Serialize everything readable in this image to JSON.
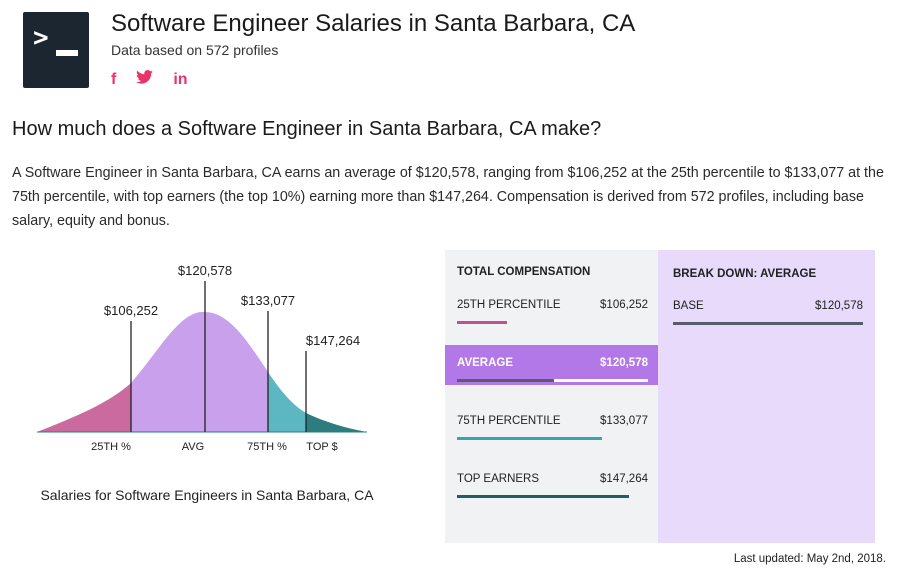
{
  "header": {
    "title": "Software Engineer Salaries in Santa Barbara, CA",
    "subtitle": "Data based on 572 profiles",
    "logo_glyph": ">",
    "social": [
      {
        "name": "facebook-icon",
        "glyph": "f"
      },
      {
        "name": "twitter-icon",
        "glyph": "🐦"
      },
      {
        "name": "linkedin-icon",
        "glyph": "in"
      }
    ],
    "accent_color": "#e8336b"
  },
  "section": {
    "heading": "How much does a Software Engineer in Santa Barbara, CA make?",
    "description": "A Software Engineer in Santa Barbara, CA earns an average of $120,578, ranging from $106,252 at the 25th percentile to $133,077 at the 75th percentile, with top earners (the top 10%) earning more than $147,264. Compensation is derived from 572 profiles, including base salary, equity and bonus."
  },
  "distribution": {
    "caption": "Salaries for Software Engineers in Santa Barbara, CA",
    "labels": {
      "p25": "$106,252",
      "avg": "$120,578",
      "p75": "$133,077",
      "top": "$147,264"
    },
    "axis": {
      "p25": "25TH %",
      "avg": "AVG",
      "p75": "75TH %",
      "top": "TOP $"
    },
    "colors": {
      "p25": "#cb6a9f",
      "avg": "#c9a0ec",
      "p75": "#5db7c2",
      "top": "#2d7d80"
    }
  },
  "total_compensation": {
    "header": "TOTAL COMPENSATION",
    "rows": [
      {
        "label": "25TH PERCENTILE",
        "value": "$106,252",
        "fill_fraction": 0.26,
        "color": "#c0508f",
        "active": false
      },
      {
        "label": "AVERAGE",
        "value": "$120,578",
        "fill_fraction": 0.51,
        "color": "#585d6e",
        "active": true
      },
      {
        "label": "75TH PERCENTILE",
        "value": "$133,077",
        "fill_fraction": 0.76,
        "color": "#3aa3b0",
        "active": false
      },
      {
        "label": "TOP EARNERS",
        "value": "$147,264",
        "fill_fraction": 0.9,
        "color": "#1f5e66",
        "active": false
      }
    ]
  },
  "breakdown": {
    "header": "BREAK DOWN: AVERAGE",
    "rows": [
      {
        "label": "BASE",
        "value": "$120,578"
      }
    ]
  },
  "footer": {
    "last_updated": "Last updated: May 2nd, 2018."
  }
}
